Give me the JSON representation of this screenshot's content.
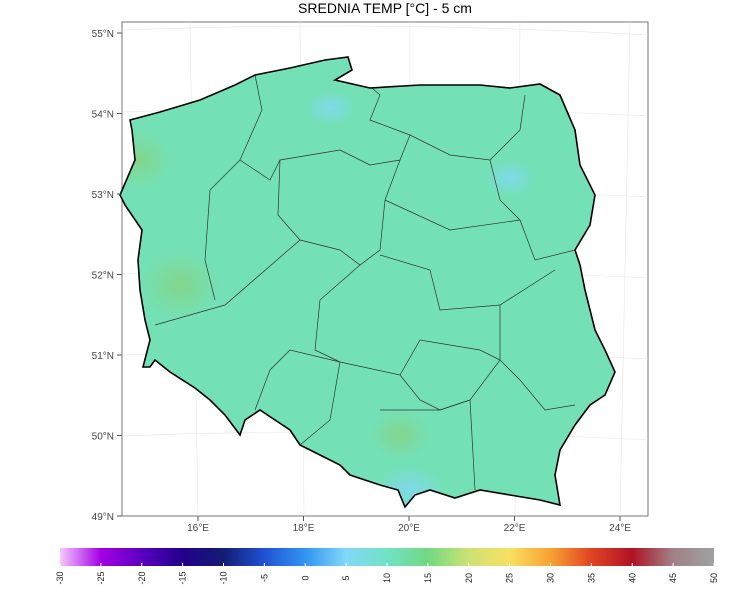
{
  "title": "SREDNIA TEMP [°C] - 5 cm",
  "lat_labels": [
    "55°N",
    "54°N",
    "53°N",
    "52°N",
    "51°N",
    "50°N",
    "49°N"
  ],
  "lon_labels": [
    "16°E",
    "18°E",
    "20°E",
    "22°E",
    "24°E"
  ],
  "legend": {
    "range": [
      -30,
      50
    ],
    "ticks": [
      -30,
      -25,
      -20,
      -15,
      -10,
      -5,
      0,
      5,
      10,
      15,
      20,
      25,
      30,
      35,
      40,
      45,
      50
    ],
    "colors": [
      "#f4c8ff",
      "#a400e4",
      "#5a00c0",
      "#22008a",
      "#141c74",
      "#2052d4",
      "#3294f2",
      "#82d8f8",
      "#70e2c4",
      "#72d882",
      "#cce274",
      "#f8e062",
      "#f8a232",
      "#e04422",
      "#b01224",
      "#a08286",
      "#a0a0a0"
    ]
  }
}
